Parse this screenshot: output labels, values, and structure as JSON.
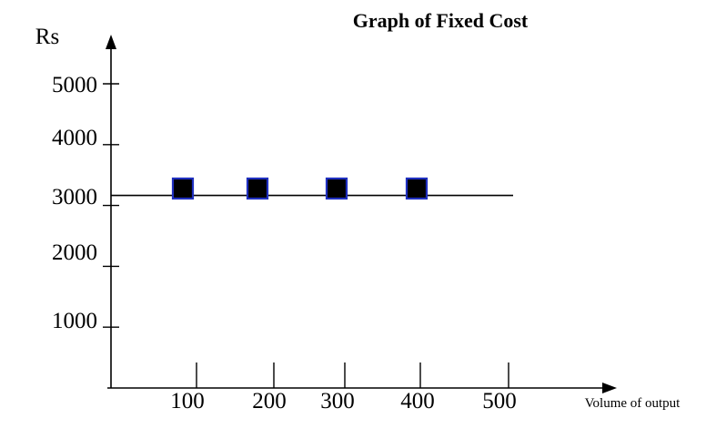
{
  "chart_data": {
    "type": "scatter",
    "title": "Graph of Fixed Cost",
    "xlabel": "Volume of output",
    "ylabel": "Rs",
    "x_ticks": [
      100,
      200,
      300,
      400,
      500
    ],
    "y_ticks": [
      1000,
      2000,
      3000,
      4000,
      5000
    ],
    "xlim": [
      0,
      500
    ],
    "ylim": [
      0,
      5000
    ],
    "grid": false,
    "fixed_cost_line": 3000,
    "points": [
      {
        "x": 100,
        "y": 3100
      },
      {
        "x": 200,
        "y": 3100
      },
      {
        "x": 300,
        "y": 3100
      },
      {
        "x": 400,
        "y": 3100
      }
    ],
    "colors": {
      "marker_fill": "#000000",
      "marker_stroke": "#1f2fbf",
      "axis": "#000000"
    }
  }
}
